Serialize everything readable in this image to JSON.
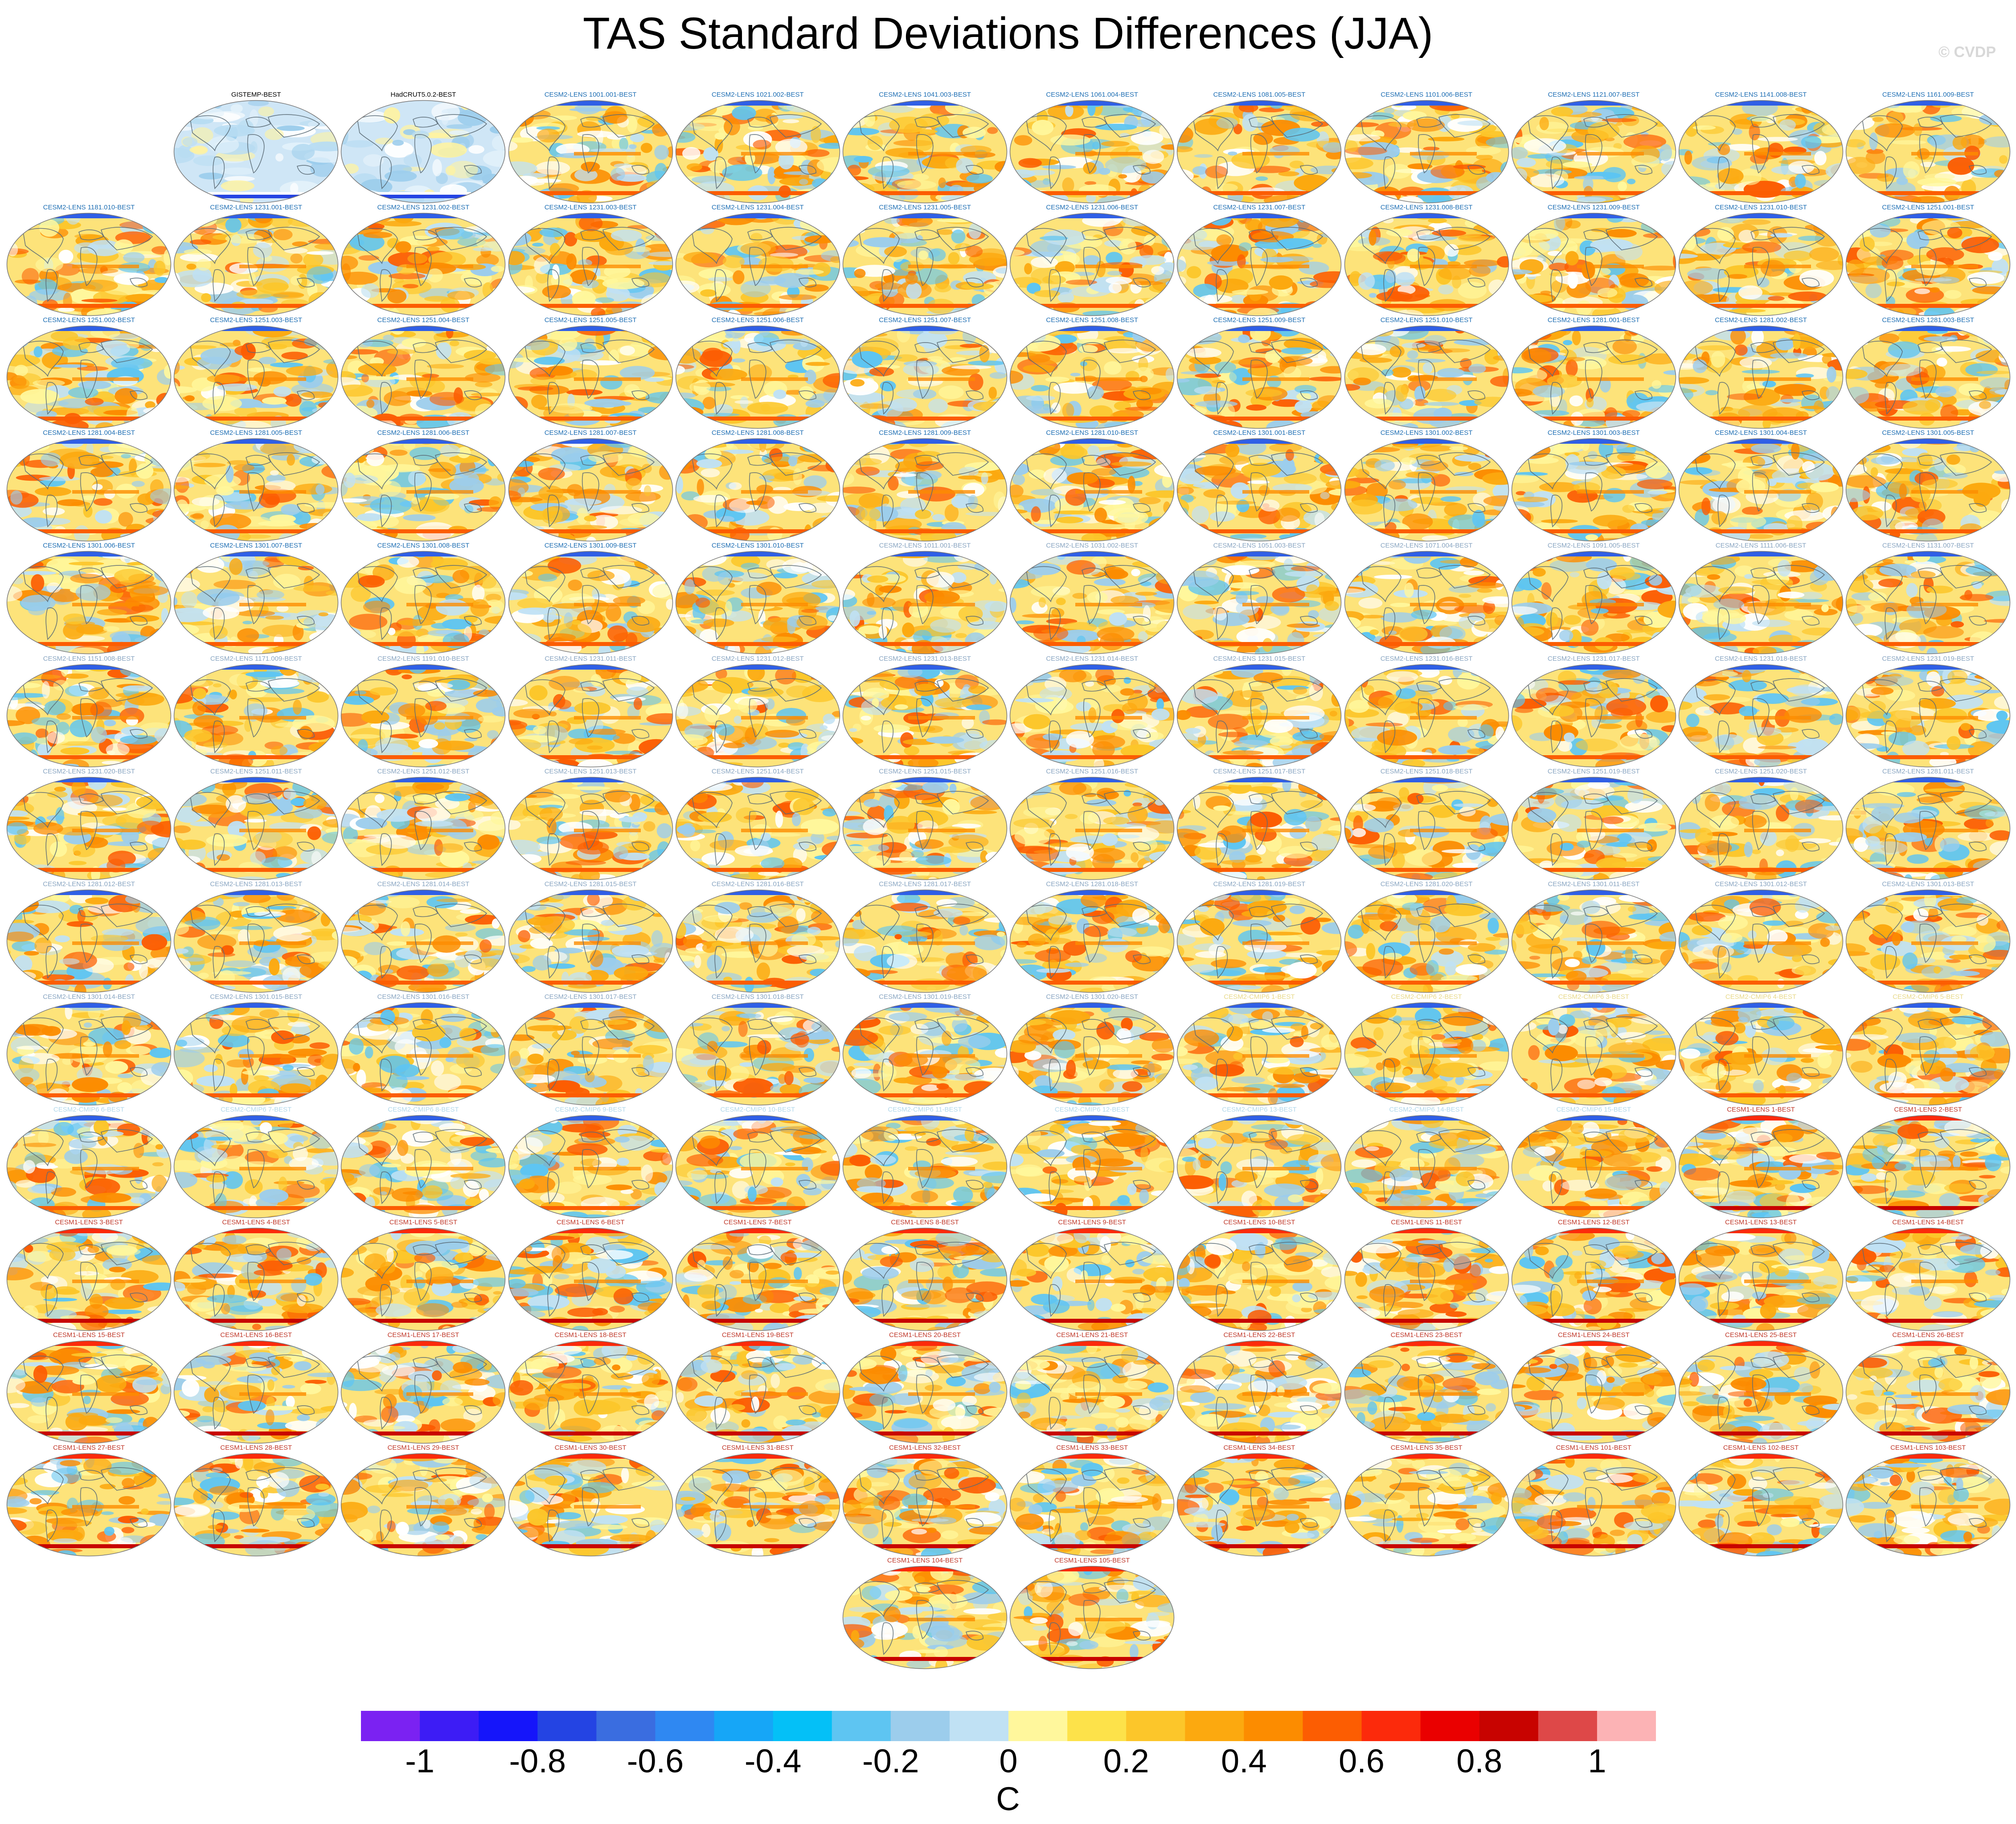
{
  "title": "TAS Standard Deviations Differences (JJA)",
  "credit": "© CVDP",
  "colorbar": {
    "unit": "C",
    "tick_labels": [
      "-1",
      "-0.8",
      "-0.6",
      "-0.4",
      "-0.2",
      "0",
      "0.2",
      "0.4",
      "0.6",
      "0.8",
      "1"
    ],
    "colors": [
      "#7b22f2",
      "#3d1cf5",
      "#1515fa",
      "#2444e3",
      "#3a6de0",
      "#2f88f2",
      "#16a6f7",
      "#04c0f7",
      "#5ec5f2",
      "#9ccdec",
      "#c0e1f4",
      "#fff79c",
      "#fde24a",
      "#fcc62a",
      "#fca90f",
      "#fc8c00",
      "#fc5d02",
      "#fc2a0b",
      "#ea0000",
      "#c80300",
      "#de4848",
      "#fcb3b5"
    ]
  },
  "panels": [
    {
      "title": "GISTEMP-BEST",
      "title_color": "#000000"
    },
    {
      "title": "HadCRUT5.0.2-BEST",
      "title_color": "#000000"
    },
    {
      "title": "CESM2-LENS 1001.001-BEST",
      "title_color": "#1f6fb4"
    },
    {
      "title": "CESM2-LENS 1021.002-BEST",
      "title_color": "#1f6fb4"
    },
    {
      "title": "CESM2-LENS 1041.003-BEST",
      "title_color": "#1f6fb4"
    },
    {
      "title": "CESM2-LENS 1061.004-BEST",
      "title_color": "#1f6fb4"
    },
    {
      "title": "CESM2-LENS 1081.005-BEST",
      "title_color": "#1f6fb4"
    },
    {
      "title": "CESM2-LENS 1101.006-BEST",
      "title_color": "#1f6fb4"
    },
    {
      "title": "CESM2-LENS 1121.007-BEST",
      "title_color": "#1f6fb4"
    },
    {
      "title": "CESM2-LENS 1141.008-BEST",
      "title_color": "#1f6fb4"
    },
    {
      "title": "CESM2-LENS 1161.009-BEST",
      "title_color": "#1f6fb4"
    },
    {
      "title": "CESM2-LENS 1181.010-BEST",
      "title_color": "#1f6fb4"
    },
    {
      "title": "CESM2-LENS 1231.001-BEST",
      "title_color": "#1f6fb4"
    },
    {
      "title": "CESM2-LENS 1231.002-BEST",
      "title_color": "#1f6fb4"
    },
    {
      "title": "CESM2-LENS 1231.003-BEST",
      "title_color": "#1f6fb4"
    },
    {
      "title": "CESM2-LENS 1231.004-BEST",
      "title_color": "#1f6fb4"
    },
    {
      "title": "CESM2-LENS 1231.005-BEST",
      "title_color": "#1f6fb4"
    },
    {
      "title": "CESM2-LENS 1231.006-BEST",
      "title_color": "#1f6fb4"
    },
    {
      "title": "CESM2-LENS 1231.007-BEST",
      "title_color": "#1f6fb4"
    },
    {
      "title": "CESM2-LENS 1231.008-BEST",
      "title_color": "#1f6fb4"
    },
    {
      "title": "CESM2-LENS 1231.009-BEST",
      "title_color": "#1f6fb4"
    },
    {
      "title": "CESM2-LENS 1231.010-BEST",
      "title_color": "#1f6fb4"
    },
    {
      "title": "CESM2-LENS 1251.001-BEST",
      "title_color": "#1f6fb4"
    },
    {
      "title": "CESM2-LENS 1251.002-BEST",
      "title_color": "#1f6fb4"
    },
    {
      "title": "CESM2-LENS 1251.003-BEST",
      "title_color": "#1f6fb4"
    },
    {
      "title": "CESM2-LENS 1251.004-BEST",
      "title_color": "#1f6fb4"
    },
    {
      "title": "CESM2-LENS 1251.005-BEST",
      "title_color": "#1f6fb4"
    },
    {
      "title": "CESM2-LENS 1251.006-BEST",
      "title_color": "#1f6fb4"
    },
    {
      "title": "CESM2-LENS 1251.007-BEST",
      "title_color": "#1f6fb4"
    },
    {
      "title": "CESM2-LENS 1251.008-BEST",
      "title_color": "#1f6fb4"
    },
    {
      "title": "CESM2-LENS 1251.009-BEST",
      "title_color": "#1f6fb4"
    },
    {
      "title": "CESM2-LENS 1251.010-BEST",
      "title_color": "#1f6fb4"
    },
    {
      "title": "CESM2-LENS 1281.001-BEST",
      "title_color": "#1f6fb4"
    },
    {
      "title": "CESM2-LENS 1281.002-BEST",
      "title_color": "#1f6fb4"
    },
    {
      "title": "CESM2-LENS 1281.003-BEST",
      "title_color": "#1f6fb4"
    },
    {
      "title": "CESM2-LENS 1281.004-BEST",
      "title_color": "#1f6fb4"
    },
    {
      "title": "CESM2-LENS 1281.005-BEST",
      "title_color": "#1f6fb4"
    },
    {
      "title": "CESM2-LENS 1281.006-BEST",
      "title_color": "#1f6fb4"
    },
    {
      "title": "CESM2-LENS 1281.007-BEST",
      "title_color": "#1f6fb4"
    },
    {
      "title": "CESM2-LENS 1281.008-BEST",
      "title_color": "#1f6fb4"
    },
    {
      "title": "CESM2-LENS 1281.009-BEST",
      "title_color": "#1f6fb4"
    },
    {
      "title": "CESM2-LENS 1281.010-BEST",
      "title_color": "#1f6fb4"
    },
    {
      "title": "CESM2-LENS 1301.001-BEST",
      "title_color": "#1f6fb4"
    },
    {
      "title": "CESM2-LENS 1301.002-BEST",
      "title_color": "#1f6fb4"
    },
    {
      "title": "CESM2-LENS 1301.003-BEST",
      "title_color": "#1f6fb4"
    },
    {
      "title": "CESM2-LENS 1301.004-BEST",
      "title_color": "#1f6fb4"
    },
    {
      "title": "CESM2-LENS 1301.005-BEST",
      "title_color": "#1f6fb4"
    },
    {
      "title": "CESM2-LENS 1301.006-BEST",
      "title_color": "#1f6fb4"
    },
    {
      "title": "CESM2-LENS 1301.007-BEST",
      "title_color": "#1f6fb4"
    },
    {
      "title": "CESM2-LENS 1301.008-BEST",
      "title_color": "#1f6fb4"
    },
    {
      "title": "CESM2-LENS 1301.009-BEST",
      "title_color": "#1f6fb4"
    },
    {
      "title": "CESM2-LENS 1301.010-BEST",
      "title_color": "#1f6fb4"
    },
    {
      "title": "CESM2-LENS 1011.001-BEST",
      "title_color": "#8aa6c2"
    },
    {
      "title": "CESM2-LENS 1031.002-BEST",
      "title_color": "#8aa6c2"
    },
    {
      "title": "CESM2-LENS 1051.003-BEST",
      "title_color": "#8aa6c2"
    },
    {
      "title": "CESM2-LENS 1071.004-BEST",
      "title_color": "#8aa6c2"
    },
    {
      "title": "CESM2-LENS 1091.005-BEST",
      "title_color": "#8aa6c2"
    },
    {
      "title": "CESM2-LENS 1111.006-BEST",
      "title_color": "#8aa6c2"
    },
    {
      "title": "CESM2-LENS 1131.007-BEST",
      "title_color": "#8aa6c2"
    },
    {
      "title": "CESM2-LENS 1151.008-BEST",
      "title_color": "#8aa6c2"
    },
    {
      "title": "CESM2-LENS 1171.009-BEST",
      "title_color": "#8aa6c2"
    },
    {
      "title": "CESM2-LENS 1191.010-BEST",
      "title_color": "#8aa6c2"
    },
    {
      "title": "CESM2-LENS 1231.011-BEST",
      "title_color": "#8aa6c2"
    },
    {
      "title": "CESM2-LENS 1231.012-BEST",
      "title_color": "#8aa6c2"
    },
    {
      "title": "CESM2-LENS 1231.013-BEST",
      "title_color": "#8aa6c2"
    },
    {
      "title": "CESM2-LENS 1231.014-BEST",
      "title_color": "#8aa6c2"
    },
    {
      "title": "CESM2-LENS 1231.015-BEST",
      "title_color": "#8aa6c2"
    },
    {
      "title": "CESM2-LENS 1231.016-BEST",
      "title_color": "#8aa6c2"
    },
    {
      "title": "CESM2-LENS 1231.017-BEST",
      "title_color": "#8aa6c2"
    },
    {
      "title": "CESM2-LENS 1231.018-BEST",
      "title_color": "#8aa6c2"
    },
    {
      "title": "CESM2-LENS 1231.019-BEST",
      "title_color": "#8aa6c2"
    },
    {
      "title": "CESM2-LENS 1231.020-BEST",
      "title_color": "#8aa6c2"
    },
    {
      "title": "CESM2-LENS 1251.011-BEST",
      "title_color": "#8aa6c2"
    },
    {
      "title": "CESM2-LENS 1251.012-BEST",
      "title_color": "#8aa6c2"
    },
    {
      "title": "CESM2-LENS 1251.013-BEST",
      "title_color": "#8aa6c2"
    },
    {
      "title": "CESM2-LENS 1251.014-BEST",
      "title_color": "#8aa6c2"
    },
    {
      "title": "CESM2-LENS 1251.015-BEST",
      "title_color": "#8aa6c2"
    },
    {
      "title": "CESM2-LENS 1251.016-BEST",
      "title_color": "#8aa6c2"
    },
    {
      "title": "CESM2-LENS 1251.017-BEST",
      "title_color": "#8aa6c2"
    },
    {
      "title": "CESM2-LENS 1251.018-BEST",
      "title_color": "#8aa6c2"
    },
    {
      "title": "CESM2-LENS 1251.019-BEST",
      "title_color": "#8aa6c2"
    },
    {
      "title": "CESM2-LENS 1251.020-BEST",
      "title_color": "#8aa6c2"
    },
    {
      "title": "CESM2-LENS 1281.011-BEST",
      "title_color": "#8aa6c2"
    },
    {
      "title": "CESM2-LENS 1281.012-BEST",
      "title_color": "#8aa6c2"
    },
    {
      "title": "CESM2-LENS 1281.013-BEST",
      "title_color": "#8aa6c2"
    },
    {
      "title": "CESM2-LENS 1281.014-BEST",
      "title_color": "#8aa6c2"
    },
    {
      "title": "CESM2-LENS 1281.015-BEST",
      "title_color": "#8aa6c2"
    },
    {
      "title": "CESM2-LENS 1281.016-BEST",
      "title_color": "#8aa6c2"
    },
    {
      "title": "CESM2-LENS 1281.017-BEST",
      "title_color": "#8aa6c2"
    },
    {
      "title": "CESM2-LENS 1281.018-BEST",
      "title_color": "#8aa6c2"
    },
    {
      "title": "CESM2-LENS 1281.019-BEST",
      "title_color": "#8aa6c2"
    },
    {
      "title": "CESM2-LENS 1281.020-BEST",
      "title_color": "#8aa6c2"
    },
    {
      "title": "CESM2-LENS 1301.011-BEST",
      "title_color": "#8aa6c2"
    },
    {
      "title": "CESM2-LENS 1301.012-BEST",
      "title_color": "#8aa6c2"
    },
    {
      "title": "CESM2-LENS 1301.013-BEST",
      "title_color": "#8aa6c2"
    },
    {
      "title": "CESM2-LENS 1301.014-BEST",
      "title_color": "#8aa6c2"
    },
    {
      "title": "CESM2-LENS 1301.015-BEST",
      "title_color": "#8aa6c2"
    },
    {
      "title": "CESM2-LENS 1301.016-BEST",
      "title_color": "#8aa6c2"
    },
    {
      "title": "CESM2-LENS 1301.017-BEST",
      "title_color": "#8aa6c2"
    },
    {
      "title": "CESM2-LENS 1301.018-BEST",
      "title_color": "#8aa6c2"
    },
    {
      "title": "CESM2-LENS 1301.019-BEST",
      "title_color": "#8aa6c2"
    },
    {
      "title": "CESM2-LENS 1301.020-BEST",
      "title_color": "#8aa6c2"
    },
    {
      "title": "CESM2-CMIP6 1-BEST",
      "title_color": "#e8d98a"
    },
    {
      "title": "CESM2-CMIP6 2-BEST",
      "title_color": "#e8d98a"
    },
    {
      "title": "CESM2-CMIP6 3-BEST",
      "title_color": "#e8d98a"
    },
    {
      "title": "CESM2-CMIP6 4-BEST",
      "title_color": "#e8d98a"
    },
    {
      "title": "CESM2-CMIP6 5-BEST",
      "title_color": "#e8d98a"
    },
    {
      "title": "CESM2-CMIP6 6-BEST",
      "title_color": "#b2d8ea"
    },
    {
      "title": "CESM2-CMIP6 7-BEST",
      "title_color": "#b2d8ea"
    },
    {
      "title": "CESM2-CMIP6 8-BEST",
      "title_color": "#b2d8ea"
    },
    {
      "title": "CESM2-CMIP6 9-BEST",
      "title_color": "#b2d8ea"
    },
    {
      "title": "CESM2-CMIP6 10-BEST",
      "title_color": "#b2d8ea"
    },
    {
      "title": "CESM2-CMIP6 11-BEST",
      "title_color": "#b2d8ea"
    },
    {
      "title": "CESM2-CMIP6 12-BEST",
      "title_color": "#b2d8ea"
    },
    {
      "title": "CESM2-CMIP6 13-BEST",
      "title_color": "#b2d8ea"
    },
    {
      "title": "CESM2-CMIP6 14-BEST",
      "title_color": "#b2d8ea"
    },
    {
      "title": "CESM2-CMIP6 15-BEST",
      "title_color": "#b2d8ea"
    },
    {
      "title": "CESM1-LENS 1-BEST",
      "title_color": "#c0392b"
    },
    {
      "title": "CESM1-LENS 2-BEST",
      "title_color": "#c0392b"
    },
    {
      "title": "CESM1-LENS 3-BEST",
      "title_color": "#c0392b"
    },
    {
      "title": "CESM1-LENS 4-BEST",
      "title_color": "#c0392b"
    },
    {
      "title": "CESM1-LENS 5-BEST",
      "title_color": "#c0392b"
    },
    {
      "title": "CESM1-LENS 6-BEST",
      "title_color": "#c0392b"
    },
    {
      "title": "CESM1-LENS 7-BEST",
      "title_color": "#c0392b"
    },
    {
      "title": "CESM1-LENS 8-BEST",
      "title_color": "#c0392b"
    },
    {
      "title": "CESM1-LENS 9-BEST",
      "title_color": "#c0392b"
    },
    {
      "title": "CESM1-LENS 10-BEST",
      "title_color": "#c0392b"
    },
    {
      "title": "CESM1-LENS 11-BEST",
      "title_color": "#c0392b"
    },
    {
      "title": "CESM1-LENS 12-BEST",
      "title_color": "#c0392b"
    },
    {
      "title": "CESM1-LENS 13-BEST",
      "title_color": "#c0392b"
    },
    {
      "title": "CESM1-LENS 14-BEST",
      "title_color": "#c0392b"
    },
    {
      "title": "CESM1-LENS 15-BEST",
      "title_color": "#c0392b"
    },
    {
      "title": "CESM1-LENS 16-BEST",
      "title_color": "#c0392b"
    },
    {
      "title": "CESM1-LENS 17-BEST",
      "title_color": "#c0392b"
    },
    {
      "title": "CESM1-LENS 18-BEST",
      "title_color": "#c0392b"
    },
    {
      "title": "CESM1-LENS 19-BEST",
      "title_color": "#c0392b"
    },
    {
      "title": "CESM1-LENS 20-BEST",
      "title_color": "#c0392b"
    },
    {
      "title": "CESM1-LENS 21-BEST",
      "title_color": "#c0392b"
    },
    {
      "title": "CESM1-LENS 22-BEST",
      "title_color": "#c0392b"
    },
    {
      "title": "CESM1-LENS 23-BEST",
      "title_color": "#c0392b"
    },
    {
      "title": "CESM1-LENS 24-BEST",
      "title_color": "#c0392b"
    },
    {
      "title": "CESM1-LENS 25-BEST",
      "title_color": "#c0392b"
    },
    {
      "title": "CESM1-LENS 26-BEST",
      "title_color": "#c0392b"
    },
    {
      "title": "CESM1-LENS 27-BEST",
      "title_color": "#c0392b"
    },
    {
      "title": "CESM1-LENS 28-BEST",
      "title_color": "#c0392b"
    },
    {
      "title": "CESM1-LENS 29-BEST",
      "title_color": "#c0392b"
    },
    {
      "title": "CESM1-LENS 30-BEST",
      "title_color": "#c0392b"
    },
    {
      "title": "CESM1-LENS 31-BEST",
      "title_color": "#c0392b"
    },
    {
      "title": "CESM1-LENS 32-BEST",
      "title_color": "#c0392b"
    },
    {
      "title": "CESM1-LENS 33-BEST",
      "title_color": "#c0392b"
    },
    {
      "title": "CESM1-LENS 34-BEST",
      "title_color": "#c0392b"
    },
    {
      "title": "CESM1-LENS 35-BEST",
      "title_color": "#c0392b"
    },
    {
      "title": "CESM1-LENS 101-BEST",
      "title_color": "#c0392b"
    },
    {
      "title": "CESM1-LENS 102-BEST",
      "title_color": "#c0392b"
    },
    {
      "title": "CESM1-LENS 103-BEST",
      "title_color": "#c0392b"
    },
    {
      "title": "CESM1-LENS 104-BEST",
      "title_color": "#c0392b"
    },
    {
      "title": "CESM1-LENS 105-BEST",
      "title_color": "#c0392b"
    }
  ]
}
